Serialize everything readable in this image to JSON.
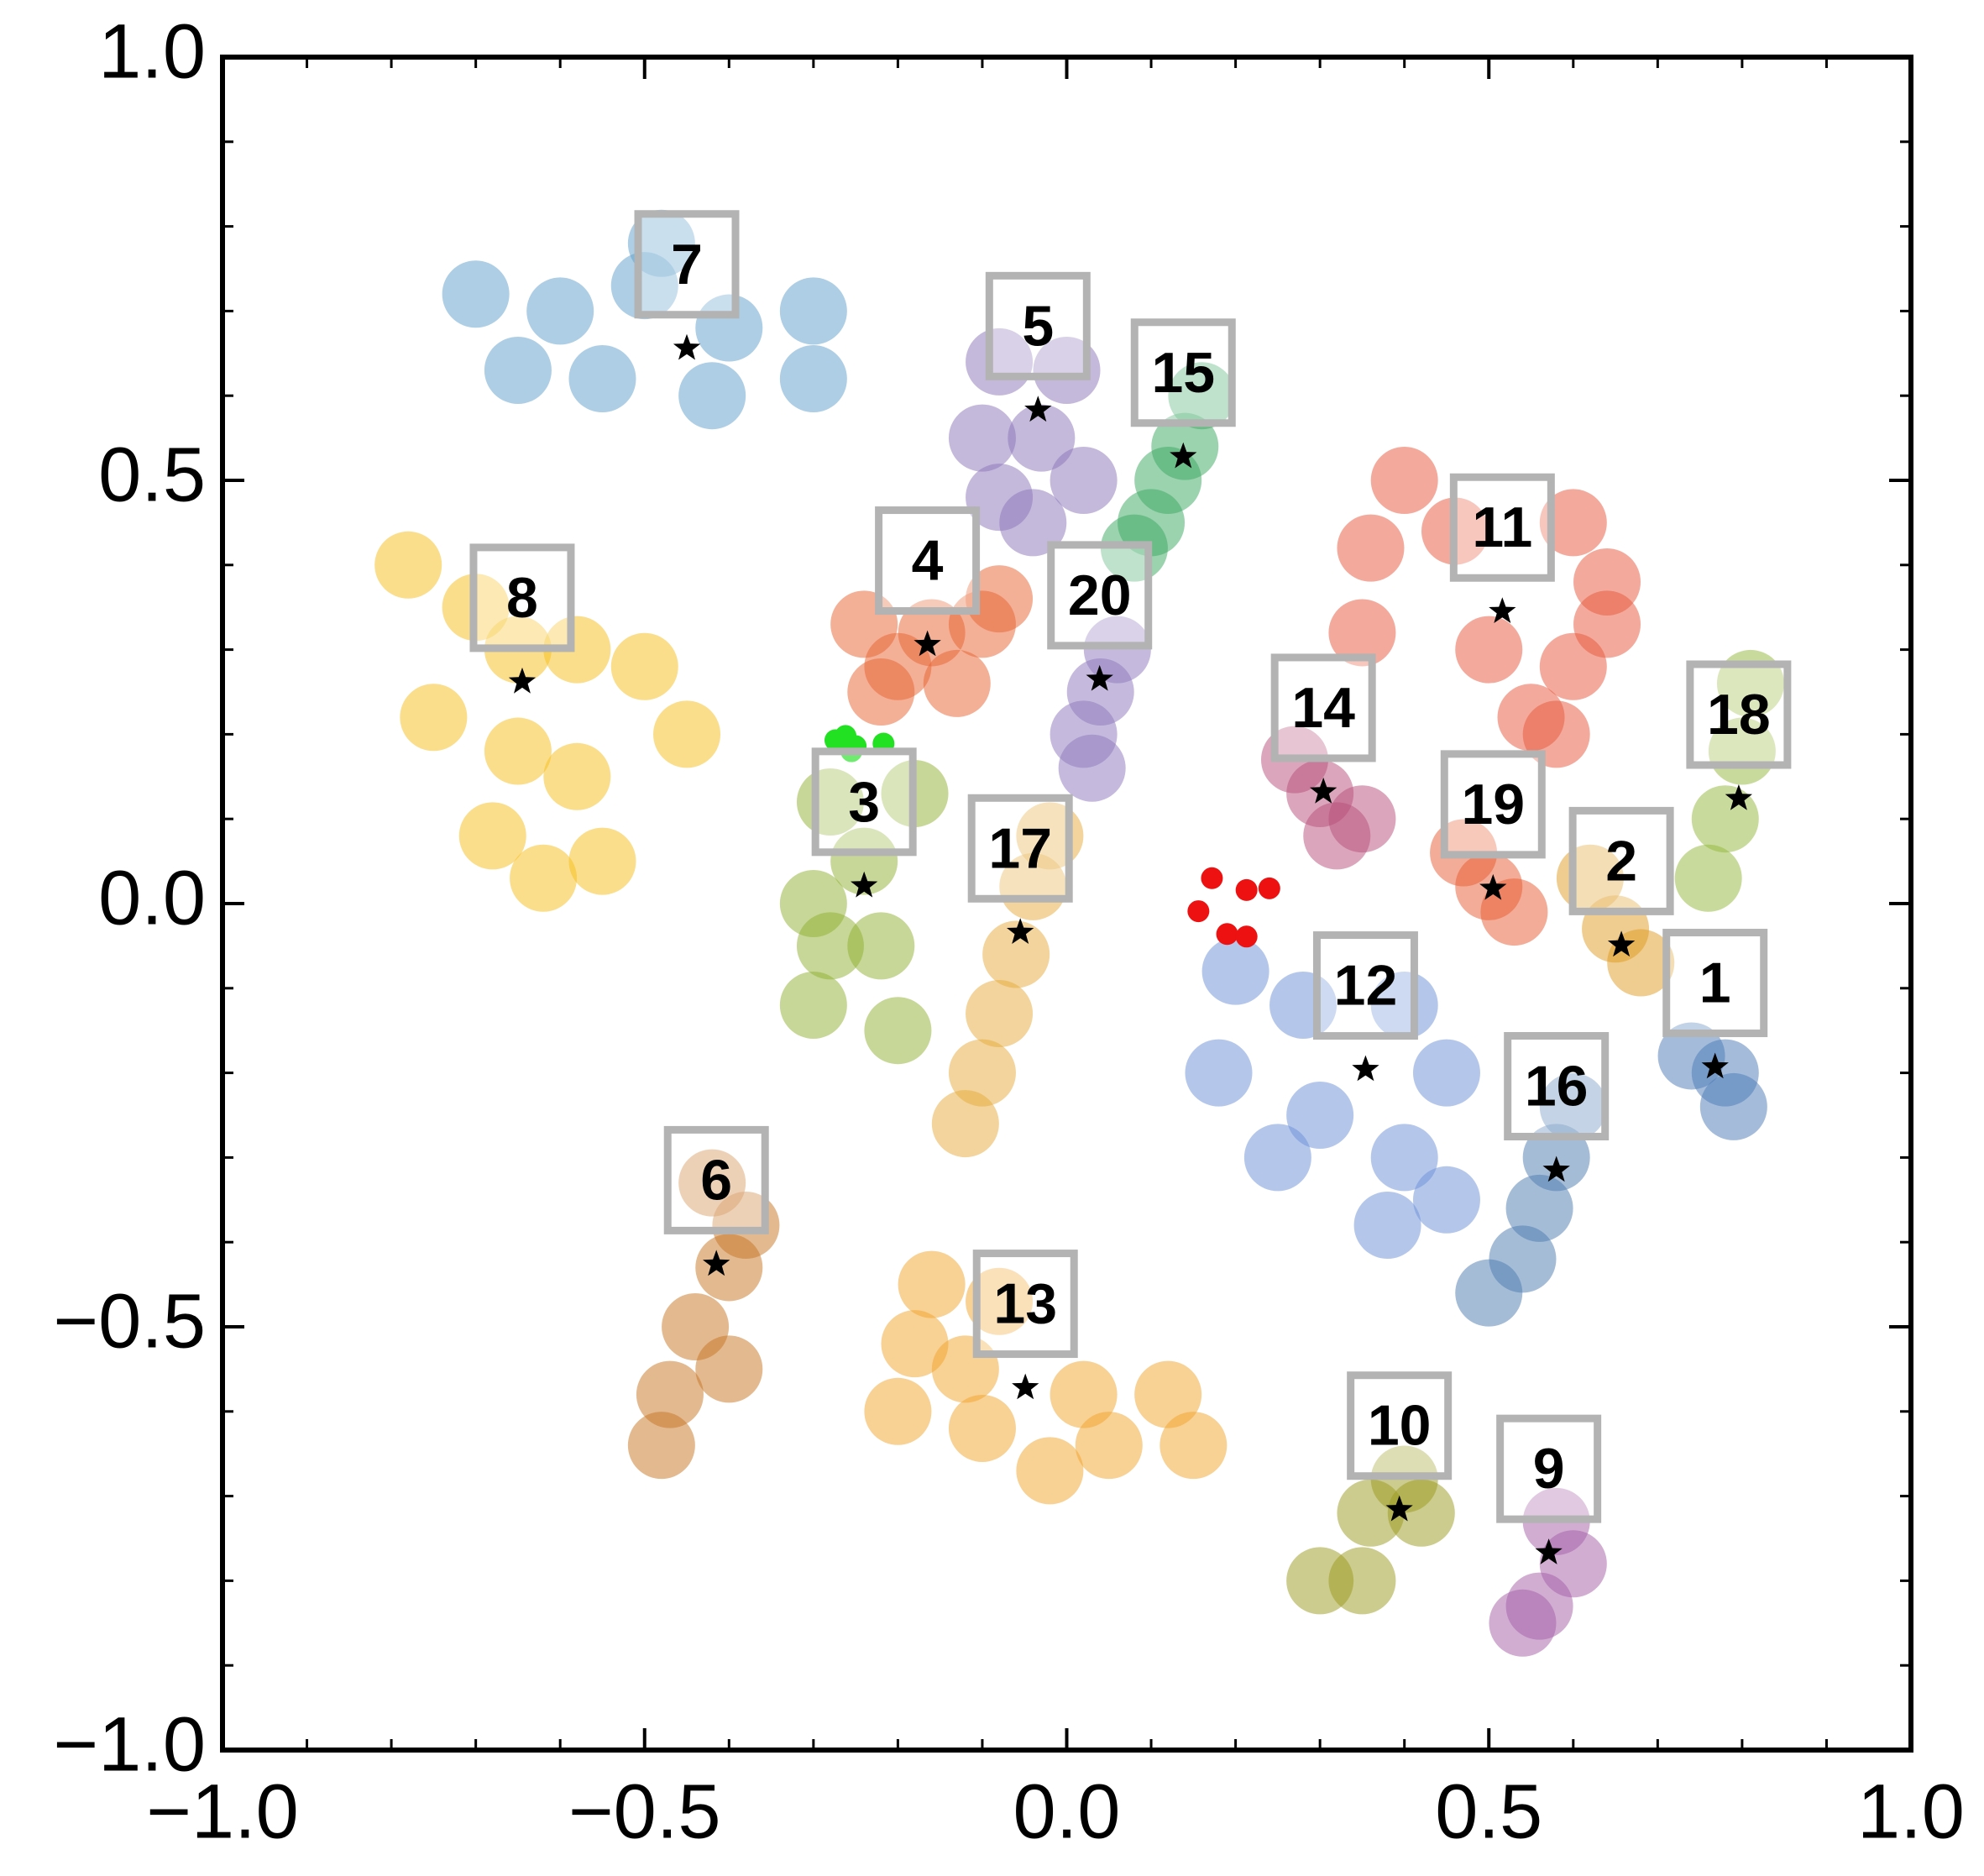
{
  "chart_data": {
    "type": "scatter",
    "xlim": [
      -1,
      1
    ],
    "ylim": [
      -1,
      1
    ],
    "xticks": [
      {
        "value": -1,
        "label": "−1.0"
      },
      {
        "value": -0.5,
        "label": "−0.5"
      },
      {
        "value": 0,
        "label": "0.0"
      },
      {
        "value": 0.5,
        "label": "0.5"
      },
      {
        "value": 1,
        "label": "1.0"
      }
    ],
    "yticks": [
      {
        "value": -1,
        "label": "−1.0"
      },
      {
        "value": -0.5,
        "label": "−0.5"
      },
      {
        "value": 0,
        "label": "0.0"
      },
      {
        "value": 0.5,
        "label": "0.5"
      },
      {
        "value": 1,
        "label": "1.0"
      }
    ],
    "minor_ticks": [
      -0.9,
      -0.8,
      -0.7,
      -0.6,
      -0.4,
      -0.3,
      -0.2,
      -0.1,
      0.1,
      0.2,
      0.3,
      0.4,
      0.6,
      0.7,
      0.8,
      0.9
    ],
    "series": [
      {
        "name": "1",
        "color": "#4a7ab5",
        "centroid_x": 0.768,
        "centroid_y": -0.193,
        "x": [
          0.74,
          0.78,
          0.79
        ],
        "y": [
          -0.18,
          -0.2,
          -0.24
        ]
      },
      {
        "name": "2",
        "color": "#e09a1f",
        "centroid_x": 0.657,
        "centroid_y": -0.049,
        "x": [
          0.62,
          0.65,
          0.68
        ],
        "y": [
          0.03,
          -0.03,
          -0.07
        ]
      },
      {
        "name": "3",
        "color": "#8fb030",
        "centroid_x": -0.24,
        "centroid_y": 0.021,
        "x": [
          -0.28,
          -0.18,
          -0.24,
          -0.3,
          -0.28,
          -0.3,
          -0.22,
          -0.2
        ],
        "y": [
          0.12,
          0.13,
          0.05,
          0.0,
          -0.05,
          -0.12,
          -0.05,
          -0.15
        ]
      },
      {
        "name": "4",
        "color": "#e8622e",
        "centroid_x": -0.165,
        "centroid_y": 0.306,
        "x": [
          -0.24,
          -0.2,
          -0.16,
          -0.1,
          -0.13,
          -0.22,
          -0.08
        ],
        "y": [
          0.33,
          0.28,
          0.32,
          0.33,
          0.26,
          0.25,
          0.36
        ]
      },
      {
        "name": "5",
        "color": "#8a73b8",
        "centroid_x": -0.034,
        "centroid_y": 0.583,
        "x": [
          -0.08,
          0.0,
          -0.1,
          -0.03,
          0.02,
          -0.08,
          -0.04
        ],
        "y": [
          0.64,
          0.63,
          0.55,
          0.55,
          0.5,
          0.48,
          0.45
        ]
      },
      {
        "name": "6",
        "color": "#c77422",
        "centroid_x": -0.415,
        "centroid_y": -0.426,
        "x": [
          -0.42,
          -0.38,
          -0.4,
          -0.44,
          -0.47,
          -0.48,
          -0.4
        ],
        "y": [
          -0.33,
          -0.38,
          -0.43,
          -0.5,
          -0.58,
          -0.64,
          -0.55
        ]
      },
      {
        "name": "7",
        "color": "#5b9dc9",
        "centroid_x": -0.45,
        "centroid_y": 0.656,
        "x": [
          -0.7,
          -0.6,
          -0.5,
          -0.4,
          -0.3,
          -0.55,
          -0.42,
          -0.3,
          -0.65,
          -0.48
        ],
        "y": [
          0.72,
          0.7,
          0.73,
          0.68,
          0.7,
          0.62,
          0.6,
          0.62,
          0.63,
          0.78
        ]
      },
      {
        "name": "8",
        "color": "#f5be1a",
        "centroid_x": -0.645,
        "centroid_y": 0.262,
        "x": [
          -0.78,
          -0.7,
          -0.65,
          -0.58,
          -0.5,
          -0.75,
          -0.65,
          -0.58,
          -0.68,
          -0.62,
          -0.45,
          -0.55
        ],
        "y": [
          0.4,
          0.35,
          0.3,
          0.3,
          0.28,
          0.22,
          0.18,
          0.15,
          0.08,
          0.03,
          0.2,
          0.05
        ]
      },
      {
        "name": "9",
        "color": "#a45ba6",
        "centroid_x": 0.571,
        "centroid_y": -0.767,
        "x": [
          0.58,
          0.6,
          0.56,
          0.54
        ],
        "y": [
          -0.73,
          -0.78,
          -0.83,
          -0.85
        ]
      },
      {
        "name": "10",
        "color": "#9a9a1e",
        "centroid_x": 0.394,
        "centroid_y": -0.716,
        "x": [
          0.4,
          0.36,
          0.42,
          0.35,
          0.3
        ],
        "y": [
          -0.68,
          -0.72,
          -0.72,
          -0.8,
          -0.8
        ]
      },
      {
        "name": "11",
        "color": "#e8553a",
        "centroid_x": 0.516,
        "centroid_y": 0.345,
        "x": [
          0.4,
          0.36,
          0.46,
          0.6,
          0.64,
          0.35,
          0.5,
          0.6,
          0.58,
          0.55,
          0.64
        ],
        "y": [
          0.5,
          0.42,
          0.44,
          0.45,
          0.38,
          0.32,
          0.3,
          0.28,
          0.2,
          0.22,
          0.33
        ]
      },
      {
        "name": "12",
        "color": "#6a8fd8",
        "centroid_x": 0.354,
        "centroid_y": -0.196,
        "x": [
          0.2,
          0.28,
          0.4,
          0.18,
          0.3,
          0.45,
          0.4,
          0.45,
          0.38,
          0.25
        ],
        "y": [
          -0.08,
          -0.12,
          -0.12,
          -0.2,
          -0.25,
          -0.2,
          -0.3,
          -0.35,
          -0.38,
          -0.3
        ]
      },
      {
        "name": "13",
        "color": "#f2a42a",
        "centroid_x": -0.049,
        "centroid_y": -0.572,
        "x": [
          -0.16,
          -0.08,
          -0.18,
          -0.12,
          -0.2,
          -0.1,
          0.02,
          0.12,
          0.05,
          -0.02,
          0.15
        ],
        "y": [
          -0.45,
          -0.47,
          -0.52,
          -0.55,
          -0.6,
          -0.62,
          -0.58,
          -0.58,
          -0.64,
          -0.67,
          -0.64
        ]
      },
      {
        "name": "14",
        "color": "#b84d7a",
        "centroid_x": 0.304,
        "centroid_y": 0.132,
        "x": [
          0.27,
          0.3,
          0.35,
          0.32
        ],
        "y": [
          0.17,
          0.13,
          0.1,
          0.08
        ]
      },
      {
        "name": "15",
        "color": "#3aa860",
        "centroid_x": 0.138,
        "centroid_y": 0.528,
        "x": [
          0.16,
          0.14,
          0.12,
          0.1,
          0.08
        ],
        "y": [
          0.6,
          0.54,
          0.5,
          0.45,
          0.42
        ]
      },
      {
        "name": "16",
        "color": "#4c7ab0",
        "centroid_x": 0.58,
        "centroid_y": -0.315,
        "x": [
          0.6,
          0.58,
          0.56,
          0.54,
          0.5
        ],
        "y": [
          -0.24,
          -0.3,
          -0.36,
          -0.42,
          -0.46
        ]
      },
      {
        "name": "17",
        "color": "#e6a93a",
        "centroid_x": -0.055,
        "centroid_y": -0.034,
        "x": [
          -0.02,
          -0.04,
          -0.06,
          -0.08,
          -0.1,
          -0.12
        ],
        "y": [
          0.08,
          0.02,
          -0.06,
          -0.13,
          -0.2,
          -0.26
        ]
      },
      {
        "name": "18",
        "color": "#94b83a",
        "centroid_x": 0.796,
        "centroid_y": 0.124,
        "x": [
          0.81,
          0.8,
          0.78,
          0.76
        ],
        "y": [
          0.26,
          0.18,
          0.1,
          0.03
        ]
      },
      {
        "name": "19",
        "color": "#e85a30",
        "centroid_x": 0.505,
        "centroid_y": 0.018,
        "x": [
          0.47,
          0.5,
          0.53
        ],
        "y": [
          0.06,
          0.02,
          -0.01
        ]
      },
      {
        "name": "20",
        "color": "#8c76bc",
        "centroid_x": 0.039,
        "centroid_y": 0.265,
        "x": [
          0.06,
          0.04,
          0.02,
          0.03
        ],
        "y": [
          0.3,
          0.25,
          0.2,
          0.16
        ]
      }
    ],
    "highlights": [
      {
        "color": "#22e022",
        "x": [
          -0.274,
          -0.25,
          -0.217,
          -0.262,
          -0.255
        ],
        "y": [
          0.193,
          0.186,
          0.189,
          0.198,
          0.18
        ]
      },
      {
        "color": "#ee1111",
        "x": [
          0.172,
          0.156,
          0.19,
          0.213,
          0.213,
          0.24
        ],
        "y": [
          0.03,
          -0.009,
          -0.036,
          -0.039,
          0.016,
          0.018
        ]
      }
    ]
  }
}
